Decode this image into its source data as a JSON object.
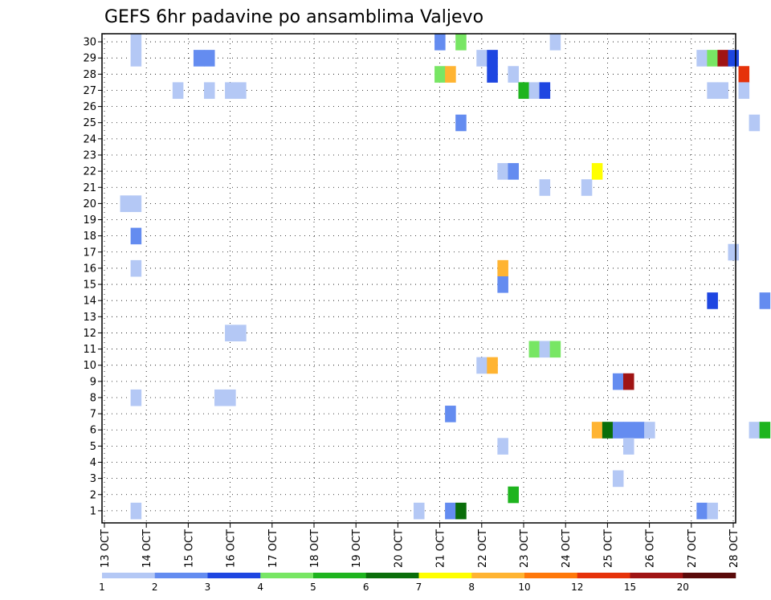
{
  "chart_data": {
    "type": "heatmap",
    "title": "GEFS 6hr padavine po ansamblima Valjevo",
    "xlabel": "",
    "ylabel": "",
    "x_ticks": [
      "13 OCT",
      "14 OCT",
      "15 OCT",
      "16 OCT",
      "17 OCT",
      "18 OCT",
      "19 OCT",
      "20 OCT",
      "21 OCT",
      "22 OCT",
      "23 OCT",
      "24 OCT",
      "25 OCT",
      "26 OCT",
      "27 OCT",
      "28 OCT"
    ],
    "y_ticks": [
      1,
      2,
      3,
      4,
      5,
      6,
      7,
      8,
      9,
      10,
      11,
      12,
      13,
      14,
      15,
      16,
      17,
      18,
      19,
      20,
      21,
      22,
      23,
      24,
      25,
      26,
      27,
      28,
      29,
      30
    ],
    "x_range_days": [
      13,
      28
    ],
    "y_range": [
      0,
      30
    ],
    "step_days": 0.25,
    "grid": "dotted",
    "legend": {
      "placement": "bottom",
      "labels": [
        "1",
        "2",
        "3",
        "4",
        "5",
        "6",
        "7",
        "8",
        "10",
        "12",
        "15",
        "20"
      ],
      "colors": [
        "#b4c8f5",
        "#648cf0",
        "#1e46e1",
        "#78e664",
        "#1eb41e",
        "#0a6e0a",
        "#ffff00",
        "#ffb432",
        "#ff780a",
        "#e6320a",
        "#a01414",
        "#5a0a0a"
      ]
    },
    "cells": [
      {
        "x": 13.75,
        "y": 30,
        "v": 1
      },
      {
        "x": 13.75,
        "y": 29,
        "v": 1
      },
      {
        "x": 15.25,
        "y": 29,
        "v": 2
      },
      {
        "x": 15.5,
        "y": 29,
        "v": 2
      },
      {
        "x": 21,
        "y": 30,
        "v": 2
      },
      {
        "x": 21.5,
        "y": 30,
        "v": 4
      },
      {
        "x": 23.75,
        "y": 30,
        "v": 1
      },
      {
        "x": 22,
        "y": 29,
        "v": 1
      },
      {
        "x": 22.25,
        "y": 29,
        "v": 3
      },
      {
        "x": 27.25,
        "y": 29,
        "v": 1
      },
      {
        "x": 27.5,
        "y": 29,
        "v": 4
      },
      {
        "x": 27.75,
        "y": 29,
        "v": 15
      },
      {
        "x": 28,
        "y": 29,
        "v": 3
      },
      {
        "x": 21,
        "y": 28,
        "v": 4
      },
      {
        "x": 21.25,
        "y": 28,
        "v": 8
      },
      {
        "x": 22.25,
        "y": 28,
        "v": 3
      },
      {
        "x": 22.75,
        "y": 28,
        "v": 1
      },
      {
        "x": 28.25,
        "y": 28,
        "v": 12
      },
      {
        "x": 14.75,
        "y": 27,
        "v": 1
      },
      {
        "x": 15.5,
        "y": 27,
        "v": 1
      },
      {
        "x": 16,
        "y": 27,
        "v": 1
      },
      {
        "x": 16.25,
        "y": 27,
        "v": 1
      },
      {
        "x": 23,
        "y": 27,
        "v": 5
      },
      {
        "x": 23.25,
        "y": 27,
        "v": 1
      },
      {
        "x": 23.5,
        "y": 27,
        "v": 3
      },
      {
        "x": 27.5,
        "y": 27,
        "v": 1
      },
      {
        "x": 27.75,
        "y": 27,
        "v": 1
      },
      {
        "x": 28.25,
        "y": 27,
        "v": 1
      },
      {
        "x": 21.5,
        "y": 25,
        "v": 2
      },
      {
        "x": 28.5,
        "y": 25,
        "v": 1
      },
      {
        "x": 22.5,
        "y": 22,
        "v": 1
      },
      {
        "x": 22.75,
        "y": 22,
        "v": 2
      },
      {
        "x": 24.75,
        "y": 22,
        "v": 7
      },
      {
        "x": 23.5,
        "y": 21,
        "v": 1
      },
      {
        "x": 24.5,
        "y": 21,
        "v": 1
      },
      {
        "x": 13.5,
        "y": 20,
        "v": 1
      },
      {
        "x": 13.75,
        "y": 20,
        "v": 1
      },
      {
        "x": 13.75,
        "y": 18,
        "v": 2
      },
      {
        "x": 22.5,
        "y": 16,
        "v": 8
      },
      {
        "x": 28,
        "y": 17,
        "v": 1
      },
      {
        "x": 13.75,
        "y": 16,
        "v": 1
      },
      {
        "x": 22.5,
        "y": 15,
        "v": 2
      },
      {
        "x": 27.5,
        "y": 14,
        "v": 3
      },
      {
        "x": 28.75,
        "y": 14,
        "v": 2
      },
      {
        "x": 16,
        "y": 12,
        "v": 1
      },
      {
        "x": 16.25,
        "y": 12,
        "v": 1
      },
      {
        "x": 23.25,
        "y": 11,
        "v": 4
      },
      {
        "x": 23.5,
        "y": 11,
        "v": 1
      },
      {
        "x": 23.75,
        "y": 11,
        "v": 4
      },
      {
        "x": 22,
        "y": 10,
        "v": 1
      },
      {
        "x": 22.25,
        "y": 10,
        "v": 8
      },
      {
        "x": 25.25,
        "y": 9,
        "v": 2
      },
      {
        "x": 25.5,
        "y": 9,
        "v": 15
      },
      {
        "x": 13.75,
        "y": 8,
        "v": 1
      },
      {
        "x": 15.75,
        "y": 8,
        "v": 1
      },
      {
        "x": 16,
        "y": 8,
        "v": 1
      },
      {
        "x": 21.25,
        "y": 7,
        "v": 2
      },
      {
        "x": 24.75,
        "y": 6,
        "v": 8
      },
      {
        "x": 25,
        "y": 6,
        "v": 6
      },
      {
        "x": 25.25,
        "y": 6,
        "v": 2
      },
      {
        "x": 25.5,
        "y": 6,
        "v": 2
      },
      {
        "x": 25.75,
        "y": 6,
        "v": 2
      },
      {
        "x": 26,
        "y": 6,
        "v": 1
      },
      {
        "x": 28.5,
        "y": 6,
        "v": 1
      },
      {
        "x": 28.75,
        "y": 6,
        "v": 5
      },
      {
        "x": 22.5,
        "y": 5,
        "v": 1
      },
      {
        "x": 25.5,
        "y": 5,
        "v": 1
      },
      {
        "x": 25.25,
        "y": 3,
        "v": 1
      },
      {
        "x": 22.75,
        "y": 2,
        "v": 5
      },
      {
        "x": 13.75,
        "y": 1,
        "v": 1
      },
      {
        "x": 20.5,
        "y": 1,
        "v": 1
      },
      {
        "x": 21.25,
        "y": 1,
        "v": 2
      },
      {
        "x": 21.5,
        "y": 1,
        "v": 6
      },
      {
        "x": 27.25,
        "y": 1,
        "v": 2
      },
      {
        "x": 27.5,
        "y": 1,
        "v": 1
      }
    ]
  }
}
